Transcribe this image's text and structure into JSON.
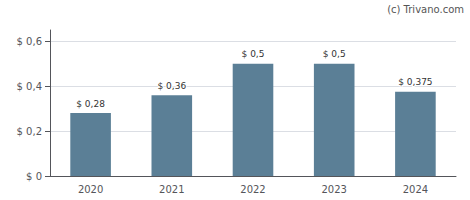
{
  "chart_data": {
    "type": "bar",
    "categories": [
      "2020",
      "2021",
      "2022",
      "2023",
      "2024"
    ],
    "values": [
      0.28,
      0.36,
      0.5,
      0.5,
      0.375
    ],
    "value_labels": [
      "$ 0,28",
      "$ 0,36",
      "$ 0,5",
      "$ 0,5",
      "$ 0,375"
    ],
    "color": "#5b7f96",
    "ylim": [
      0,
      0.65
    ],
    "yticks": [
      {
        "value": 0,
        "label": "$ 0"
      },
      {
        "value": 0.2,
        "label": "$ 0,2"
      },
      {
        "value": 0.4,
        "label": "$ 0,4"
      },
      {
        "value": 0.6,
        "label": "$ 0,6"
      }
    ],
    "grid": true,
    "data_labels": true,
    "annotations": [
      "(c) Trivano.com"
    ]
  }
}
